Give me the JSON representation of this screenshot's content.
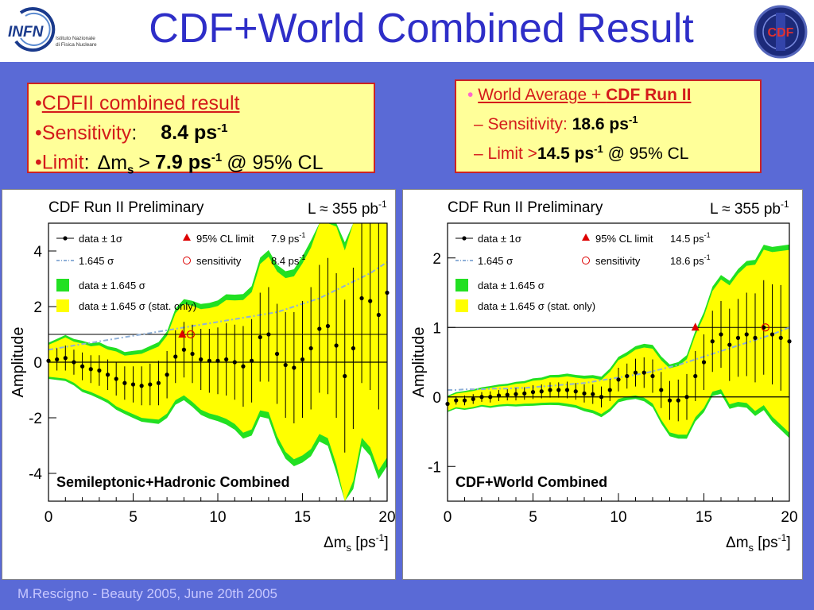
{
  "title": "CDF+World Combined Result",
  "logo_left": {
    "name": "INFN",
    "line1": "Istituto Nazionale",
    "line2": "di Fisica Nucleare"
  },
  "logo_right": {
    "name": "CDF"
  },
  "box_left": {
    "line1": "CDFII combined result",
    "line2_label": "Sensitivity",
    "line2_sep": ":",
    "line2_value": "8.4 ps",
    "line2_exp": "-1",
    "line3_label": "Limit",
    "line3_sep": ":",
    "line3_sym": "Δm",
    "line3_sub": "s",
    "line3_gt": ">",
    "line3_value": "7.9 ps",
    "line3_exp": "-1",
    "line3_tail": "@ 95% CL"
  },
  "box_right": {
    "line1_a": "World Average + ",
    "line1_b": "CDF Run II",
    "line2_label": "– Sensitivity: ",
    "line2_value": "18.6 ps",
    "line2_exp": "-1",
    "line3_label": "– Limit >",
    "line3_value": "14.5 ps",
    "line3_exp": "-1",
    "line3_tail": " @ 95% CL"
  },
  "footer": "M.Rescigno - Beauty 2005,  June 20th 2005",
  "colors": {
    "band_yellow": "#ffff00",
    "band_green": "#22e022",
    "limit_red": "#dd0000",
    "sens_blue": "#8fb0d8",
    "box_bg": "#ffff99",
    "header_blue": "#2e2ec8"
  },
  "chart_data": [
    {
      "type": "line",
      "title": "CDF Run II Preliminary",
      "luminosity": "L ≈ 355 pb",
      "luminosity_exp": "-1",
      "annotation": "Semileptonic+Hadronic Combined",
      "xlabel_main": "Δm",
      "xlabel_sub": "s",
      "xlabel_unit": " [ps",
      "xlabel_exp": "-1",
      "xlabel_end": "]",
      "ylabel": "Amplitude",
      "xlim": [
        0,
        20
      ],
      "ylim": [
        -5,
        5
      ],
      "xticks": [
        "0",
        "5",
        "10",
        "15",
        "20"
      ],
      "xtick_values": [
        0,
        5,
        10,
        15,
        20
      ],
      "yticks": [
        "4",
        "2",
        "0",
        "-2",
        "-4"
      ],
      "ytick_values": [
        4,
        2,
        0,
        -2,
        -4
      ],
      "legend": {
        "data": "data ± 1σ",
        "limit": "95% CL limit",
        "limit_value": "7.9 ps",
        "limit_exp": "-1",
        "sens": "1.645 σ",
        "sens_marker": "sensitivity",
        "sens_value": "8.4 ps",
        "sens_exp": "-1",
        "green": "data ± 1.645 σ",
        "yellow": "data ± 1.645 σ (stat. only)"
      },
      "limit_point": [
        7.9,
        1.0
      ],
      "sens_point": [
        8.4,
        1.0
      ],
      "x": [
        0,
        0.5,
        1,
        1.5,
        2,
        2.5,
        3,
        3.5,
        4,
        4.5,
        5,
        5.5,
        6,
        6.5,
        7,
        7.5,
        8,
        8.5,
        9,
        9.5,
        10,
        10.5,
        11,
        11.5,
        12,
        12.5,
        13,
        13.5,
        14,
        14.5,
        15,
        15.5,
        16,
        16.5,
        17,
        17.5,
        18,
        18.5,
        19,
        19.5,
        20
      ],
      "values": [
        0.05,
        0.1,
        0.15,
        0.0,
        -0.15,
        -0.25,
        -0.3,
        -0.45,
        -0.6,
        -0.75,
        -0.8,
        -0.85,
        -0.8,
        -0.75,
        -0.45,
        0.2,
        0.45,
        0.3,
        0.1,
        0.05,
        0.05,
        0.1,
        0.0,
        -0.15,
        0.05,
        0.9,
        1.0,
        0.3,
        -0.1,
        -0.2,
        0.1,
        0.5,
        1.2,
        1.3,
        0.6,
        -0.5,
        0.5,
        2.3,
        2.2,
        1.7,
        2.5
      ],
      "err_stat": [
        0.35,
        0.4,
        0.45,
        0.45,
        0.5,
        0.5,
        0.55,
        0.55,
        0.6,
        0.6,
        0.65,
        0.7,
        0.75,
        0.8,
        0.85,
        0.95,
        1.0,
        1.05,
        1.1,
        1.15,
        1.2,
        1.3,
        1.35,
        1.45,
        1.5,
        1.6,
        1.7,
        1.8,
        1.9,
        2.0,
        2.1,
        2.2,
        2.3,
        2.45,
        2.6,
        2.75,
        2.9,
        3.05,
        3.2,
        3.4,
        3.6
      ],
      "sensitivity_curve": [
        0.45,
        0.5,
        0.55,
        0.6,
        0.65,
        0.7,
        0.75,
        0.8,
        0.85,
        0.9,
        0.95,
        1.0,
        1.05,
        1.1,
        1.15,
        1.2,
        1.25,
        1.3,
        1.35,
        1.4,
        1.45,
        1.5,
        1.55,
        1.6,
        1.65,
        1.7,
        1.75,
        1.8,
        1.9,
        2.0,
        2.1,
        2.2,
        2.3,
        2.45,
        2.6,
        2.75,
        2.9,
        3.05,
        3.2,
        3.4,
        3.6
      ]
    },
    {
      "type": "line",
      "title": "CDF Run II Preliminary",
      "luminosity": "L ≈ 355 pb",
      "luminosity_exp": "-1",
      "annotation": "CDF+World Combined",
      "xlabel_main": "Δm",
      "xlabel_sub": "s",
      "xlabel_unit": " [ps",
      "xlabel_exp": "-1",
      "xlabel_end": "]",
      "ylabel": "Amplitude",
      "xlim": [
        0,
        20
      ],
      "ylim": [
        -1.5,
        2.5
      ],
      "xticks": [
        "0",
        "5",
        "10",
        "15",
        "20"
      ],
      "xtick_values": [
        0,
        5,
        10,
        15,
        20
      ],
      "yticks": [
        "2",
        "1",
        "0",
        "-1"
      ],
      "ytick_values": [
        2,
        1,
        0,
        -1
      ],
      "legend": {
        "data": "data ± 1σ",
        "limit": "95% CL limit",
        "limit_value": "14.5 ps",
        "limit_exp": "-1",
        "sens": "1.645 σ",
        "sens_marker": "sensitivity",
        "sens_value": "18.6 ps",
        "sens_exp": "-1",
        "green": "data ± 1.645 σ",
        "yellow": "data ± 1.645 σ (stat. only)"
      },
      "limit_point": [
        14.5,
        1.0
      ],
      "sens_point": [
        18.6,
        1.0
      ],
      "x": [
        0,
        0.5,
        1,
        1.5,
        2,
        2.5,
        3,
        3.5,
        4,
        4.5,
        5,
        5.5,
        6,
        6.5,
        7,
        7.5,
        8,
        8.5,
        9,
        9.5,
        10,
        10.5,
        11,
        11.5,
        12,
        12.5,
        13,
        13.5,
        14,
        14.5,
        15,
        15.5,
        16,
        16.5,
        17,
        17.5,
        18,
        18.5,
        19,
        19.5,
        20
      ],
      "values": [
        -0.1,
        -0.05,
        -0.05,
        -0.03,
        0.0,
        0.0,
        0.02,
        0.03,
        0.04,
        0.05,
        0.07,
        0.08,
        0.1,
        0.1,
        0.1,
        0.08,
        0.05,
        0.04,
        0.0,
        0.1,
        0.25,
        0.3,
        0.35,
        0.35,
        0.3,
        0.1,
        -0.05,
        -0.05,
        0.0,
        0.3,
        0.5,
        0.8,
        0.9,
        0.75,
        0.85,
        0.9,
        0.85,
        1.0,
        0.9,
        0.85,
        0.8
      ],
      "err_stat": [
        0.06,
        0.06,
        0.07,
        0.07,
        0.07,
        0.08,
        0.08,
        0.08,
        0.09,
        0.09,
        0.1,
        0.1,
        0.11,
        0.11,
        0.12,
        0.12,
        0.13,
        0.14,
        0.15,
        0.16,
        0.17,
        0.18,
        0.2,
        0.22,
        0.24,
        0.26,
        0.28,
        0.3,
        0.33,
        0.36,
        0.4,
        0.44,
        0.48,
        0.52,
        0.56,
        0.6,
        0.64,
        0.68,
        0.72,
        0.76,
        0.8
      ],
      "sensitivity_curve": [
        0.1,
        0.1,
        0.11,
        0.11,
        0.11,
        0.12,
        0.12,
        0.12,
        0.13,
        0.13,
        0.14,
        0.15,
        0.16,
        0.17,
        0.18,
        0.19,
        0.2,
        0.22,
        0.24,
        0.26,
        0.28,
        0.3,
        0.32,
        0.34,
        0.37,
        0.4,
        0.43,
        0.46,
        0.5,
        0.54,
        0.58,
        0.62,
        0.66,
        0.7,
        0.74,
        0.78,
        0.82,
        0.86,
        0.9,
        0.95,
        1.0
      ]
    }
  ]
}
